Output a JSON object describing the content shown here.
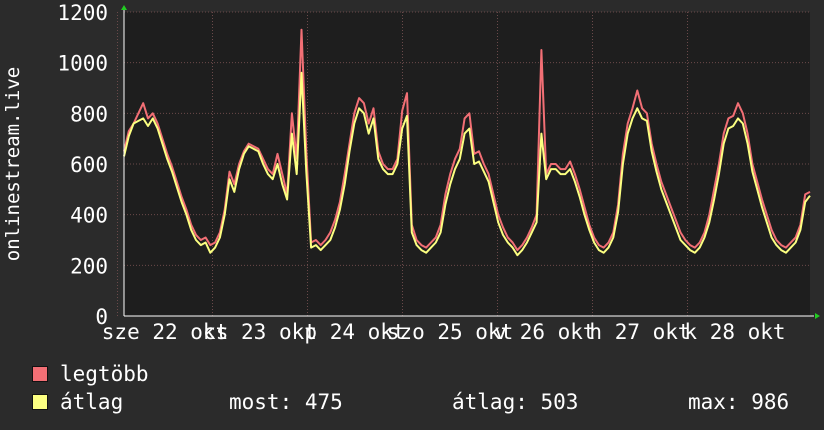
{
  "chart_data": {
    "type": "line",
    "ylabel": "onlinestream.live",
    "ylim": [
      0,
      1200
    ],
    "yticks": [
      0,
      200,
      400,
      600,
      800,
      1000,
      1200
    ],
    "x_tick_labels": [
      "sze 22 okt",
      "cs 23 okt",
      "p 24 okt",
      "szo 25 okt",
      "v 26 okt",
      "h 27 okt",
      "k 28 okt"
    ],
    "grid": true,
    "series": [
      {
        "name": "legtöbb",
        "color": "#f26f75",
        "values": [
          650,
          730,
          760,
          800,
          840,
          780,
          800,
          760,
          700,
          640,
          590,
          530,
          470,
          420,
          360,
          320,
          300,
          310,
          280,
          290,
          330,
          420,
          570,
          520,
          600,
          650,
          680,
          670,
          660,
          620,
          580,
          560,
          640,
          560,
          480,
          800,
          620,
          1130,
          650,
          290,
          300,
          280,
          300,
          330,
          380,
          450,
          560,
          680,
          800,
          860,
          840,
          760,
          820,
          650,
          600,
          580,
          580,
          620,
          810,
          880,
          360,
          300,
          280,
          270,
          290,
          310,
          360,
          480,
          560,
          620,
          660,
          780,
          800,
          640,
          650,
          600,
          560,
          480,
          400,
          350,
          310,
          290,
          260,
          280,
          310,
          350,
          400,
          1050,
          560,
          600,
          600,
          580,
          580,
          610,
          560,
          500,
          430,
          360,
          310,
          280,
          270,
          290,
          330,
          440,
          640,
          760,
          820,
          890,
          820,
          800,
          680,
          600,
          530,
          480,
          430,
          380,
          330,
          300,
          280,
          270,
          290,
          330,
          400,
          500,
          600,
          720,
          780,
          790,
          840,
          800,
          720,
          600,
          530,
          460,
          400,
          340,
          300,
          280,
          270,
          290,
          310,
          360,
          480,
          490
        ]
      },
      {
        "name": "átlag",
        "color": "#fcff81",
        "values": [
          630,
          710,
          760,
          770,
          780,
          750,
          780,
          740,
          680,
          620,
          570,
          510,
          450,
          400,
          340,
          300,
          280,
          290,
          250,
          270,
          310,
          400,
          540,
          490,
          580,
          640,
          670,
          660,
          650,
          600,
          560,
          540,
          600,
          520,
          460,
          720,
          560,
          960,
          570,
          270,
          280,
          260,
          280,
          300,
          350,
          420,
          520,
          650,
          760,
          820,
          800,
          720,
          780,
          620,
          580,
          560,
          560,
          600,
          740,
          790,
          330,
          280,
          260,
          250,
          270,
          290,
          330,
          440,
          520,
          580,
          620,
          720,
          740,
          600,
          610,
          570,
          530,
          450,
          370,
          320,
          290,
          270,
          240,
          260,
          290,
          330,
          370,
          720,
          540,
          580,
          580,
          560,
          560,
          580,
          530,
          470,
          400,
          340,
          290,
          260,
          250,
          270,
          310,
          410,
          600,
          720,
          780,
          820,
          780,
          770,
          650,
          570,
          500,
          450,
          400,
          350,
          300,
          280,
          260,
          250,
          270,
          310,
          370,
          460,
          560,
          680,
          740,
          750,
          780,
          760,
          680,
          570,
          500,
          430,
          370,
          310,
          280,
          260,
          250,
          270,
          290,
          340,
          450,
          475
        ]
      }
    ]
  },
  "legend": {
    "max_label": "legtöbb",
    "avg_label": "átlag"
  },
  "stats": {
    "now": "most: 475",
    "avg": "átlag: 503",
    "max": "max: 986"
  }
}
